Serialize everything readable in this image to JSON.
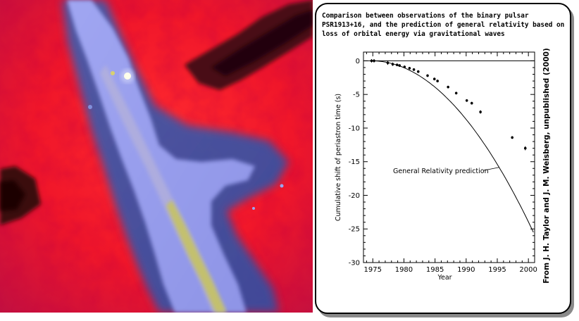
{
  "left_image": {
    "kind": "simulation-rendering",
    "palette": [
      "#ff1a26",
      "#c20f35",
      "#3c5aa6",
      "#8e92ea",
      "#c7c45a",
      "#2a0508"
    ]
  },
  "annotation": {
    "title_lines": [
      "Comparison between observations of the binary pulsar",
      "PSR1913+16,  and the prediction of general relativity based on",
      "loss of orbital energy via gravitational waves"
    ],
    "credit": "From  J. H. Taylor and J. M. Weisberg,  unpublished (2000)"
  },
  "chart_data": {
    "type": "scatter",
    "xlabel": "Year",
    "ylabel": "Cumulative shift of periastron time (s)",
    "xlim": [
      1973.5,
      2001
    ],
    "ylim": [
      -30,
      1.3
    ],
    "xticks": [
      1975,
      1980,
      1985,
      1990,
      1995,
      2000
    ],
    "yticks": [
      0,
      -5,
      -10,
      -15,
      -20,
      -25,
      -30
    ],
    "annotation": "General Relativity prediction",
    "series": [
      {
        "name": "observations",
        "x": [
          1974.8,
          1975.2,
          1977.4,
          1978.2,
          1978.9,
          1979.3,
          1980.1,
          1980.9,
          1981.6,
          1982.3,
          1983.8,
          1984.9,
          1985.4,
          1987.1,
          1988.4,
          1990.1,
          1990.9,
          1992.3,
          1997.4,
          1999.5
        ],
        "y": [
          0.0,
          0.0,
          -0.3,
          -0.5,
          -0.6,
          -0.7,
          -0.9,
          -1.1,
          -1.3,
          -1.6,
          -2.2,
          -2.7,
          -3.0,
          -3.9,
          -4.8,
          -5.9,
          -6.3,
          -7.6,
          -11.4,
          -13.0
        ],
        "errors": [
          0.25,
          0.25,
          0.3,
          0.25,
          0.2,
          0.2,
          0.2,
          0.2,
          0.2,
          0.2,
          0.2,
          0.2,
          0.2,
          0.2,
          0.2,
          0.2,
          0.2,
          0.25,
          0.2,
          0.3
        ]
      },
      {
        "name": "General Relativity prediction",
        "curve": "quadratic",
        "t0": 1974.8,
        "coefficient": -0.0377
      }
    ]
  },
  "colors": {
    "frame": "#000000",
    "shadow": "#8a8a8a",
    "curve": "#000000"
  }
}
